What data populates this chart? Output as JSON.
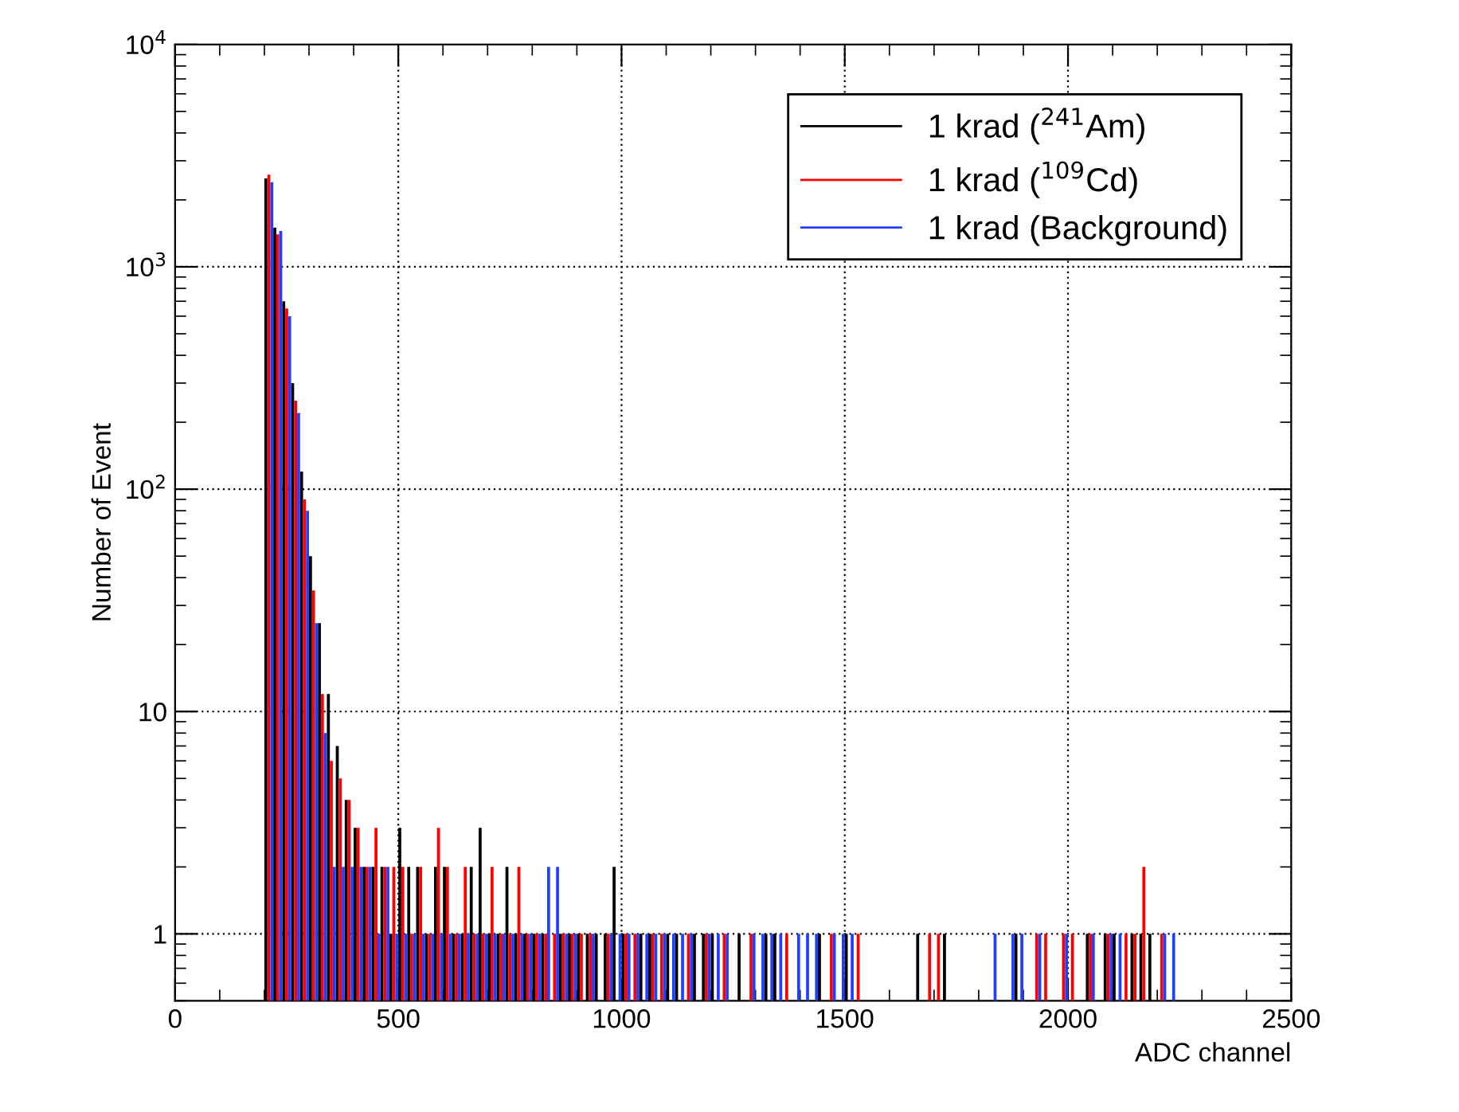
{
  "chart_data": {
    "type": "histogram",
    "xlabel": "ADC channel",
    "ylabel": "Number of Event",
    "bins": [
      200,
      220,
      240,
      260,
      280,
      300,
      320,
      340,
      360,
      380,
      400,
      420,
      440,
      460,
      480,
      500,
      520,
      540,
      560,
      580,
      600,
      620,
      640,
      660,
      680,
      700,
      720,
      740,
      760,
      780,
      800,
      820,
      840,
      860,
      880,
      900,
      920,
      940,
      960,
      980,
      1000,
      1020,
      1040,
      1060,
      1080,
      1100,
      1120,
      1140,
      1160,
      1180,
      1200,
      1220,
      1240,
      1260,
      1280,
      1300,
      1320,
      1340,
      1360,
      1380,
      1400,
      1420,
      1440,
      1460,
      1480,
      1500,
      1520,
      1540,
      1560,
      1580,
      1600,
      1620,
      1640,
      1660,
      1680,
      1700,
      1720,
      1740,
      1760,
      1780,
      1800,
      1820,
      1840,
      1860,
      1880,
      1900,
      1920,
      1940,
      1960,
      1980,
      2000,
      2020,
      2040,
      2060,
      2080,
      2100,
      2120,
      2140,
      2160,
      2180,
      2200,
      2220,
      2240
    ],
    "series": [
      {
        "name": "1 krad ($^{241}$Am)",
        "color": "#000000",
        "values": [
          2500,
          1500,
          700,
          300,
          120,
          50,
          25,
          12,
          7,
          4,
          3,
          2,
          2,
          2,
          1,
          3,
          2,
          2,
          1,
          2,
          2,
          1,
          1,
          2,
          3,
          1,
          1,
          2,
          1,
          1,
          1,
          1,
          null,
          1,
          1,
          1,
          1,
          1,
          1,
          2,
          1,
          null,
          1,
          1,
          null,
          1,
          1,
          null,
          1,
          1,
          1,
          null,
          null,
          1,
          null,
          null,
          1,
          1,
          null,
          null,
          null,
          null,
          1,
          null,
          null,
          1,
          null,
          null,
          null,
          null,
          null,
          null,
          null,
          1,
          null,
          null,
          1,
          null,
          null,
          null,
          null,
          null,
          null,
          null,
          1,
          null,
          null,
          null,
          null,
          null,
          null,
          null,
          1,
          null,
          1,
          1,
          null,
          1,
          1,
          1,
          null,
          null
        ]
      },
      {
        "name": "1 krad ($^{109}$Cd)",
        "color": "#ff0000",
        "values": [
          2600,
          1400,
          650,
          250,
          90,
          35,
          12,
          6,
          5,
          4,
          3,
          2,
          3,
          2,
          2,
          2,
          1,
          2,
          1,
          3,
          2,
          1,
          2,
          1,
          1,
          2,
          1,
          1,
          2,
          1,
          1,
          1,
          1,
          1,
          1,
          1,
          1,
          null,
          1,
          null,
          1,
          1,
          null,
          1,
          1,
          null,
          null,
          1,
          null,
          1,
          null,
          1,
          null,
          null,
          1,
          null,
          null,
          null,
          1,
          null,
          null,
          null,
          null,
          1,
          null,
          null,
          1,
          null,
          null,
          null,
          null,
          null,
          null,
          null,
          1,
          1,
          null,
          null,
          null,
          null,
          null,
          null,
          null,
          null,
          null,
          null,
          1,
          1,
          null,
          1,
          1,
          null,
          1,
          null,
          1,
          null,
          1,
          1,
          2,
          null,
          1,
          null
        ]
      },
      {
        "name": "1 krad (Background)",
        "color": "#2040ff",
        "values": [
          2400,
          1450,
          600,
          220,
          80,
          25,
          8,
          2,
          2,
          2,
          2,
          2,
          1,
          2,
          1,
          1,
          1,
          1,
          1,
          1,
          1,
          1,
          1,
          1,
          1,
          1,
          1,
          1,
          1,
          1,
          1,
          2,
          2,
          1,
          1,
          null,
          1,
          null,
          1,
          1,
          1,
          1,
          1,
          1,
          1,
          1,
          1,
          1,
          null,
          1,
          1,
          1,
          null,
          null,
          1,
          1,
          1,
          1,
          null,
          1,
          1,
          1,
          null,
          1,
          1,
          1,
          null,
          null,
          null,
          null,
          null,
          null,
          null,
          null,
          null,
          null,
          null,
          null,
          null,
          null,
          null,
          1,
          null,
          1,
          1,
          null,
          1,
          null,
          null,
          1,
          null,
          null,
          1,
          null,
          1,
          1,
          null,
          null,
          null,
          null,
          1,
          1
        ]
      }
    ],
    "xlim": [
      0,
      2500
    ],
    "xticks": [
      0,
      500,
      1000,
      1500,
      2000,
      2500
    ],
    "log": "y",
    "ylim": [
      0.5,
      10000
    ],
    "yticks": [
      1,
      10,
      {
        "value": 100,
        "label": "10$^{2}$"
      },
      {
        "value": 1000,
        "label": "10$^{3}$"
      },
      {
        "value": 10000,
        "label": "10$^{4}$"
      }
    ],
    "grid": true,
    "legend": "top right"
  }
}
